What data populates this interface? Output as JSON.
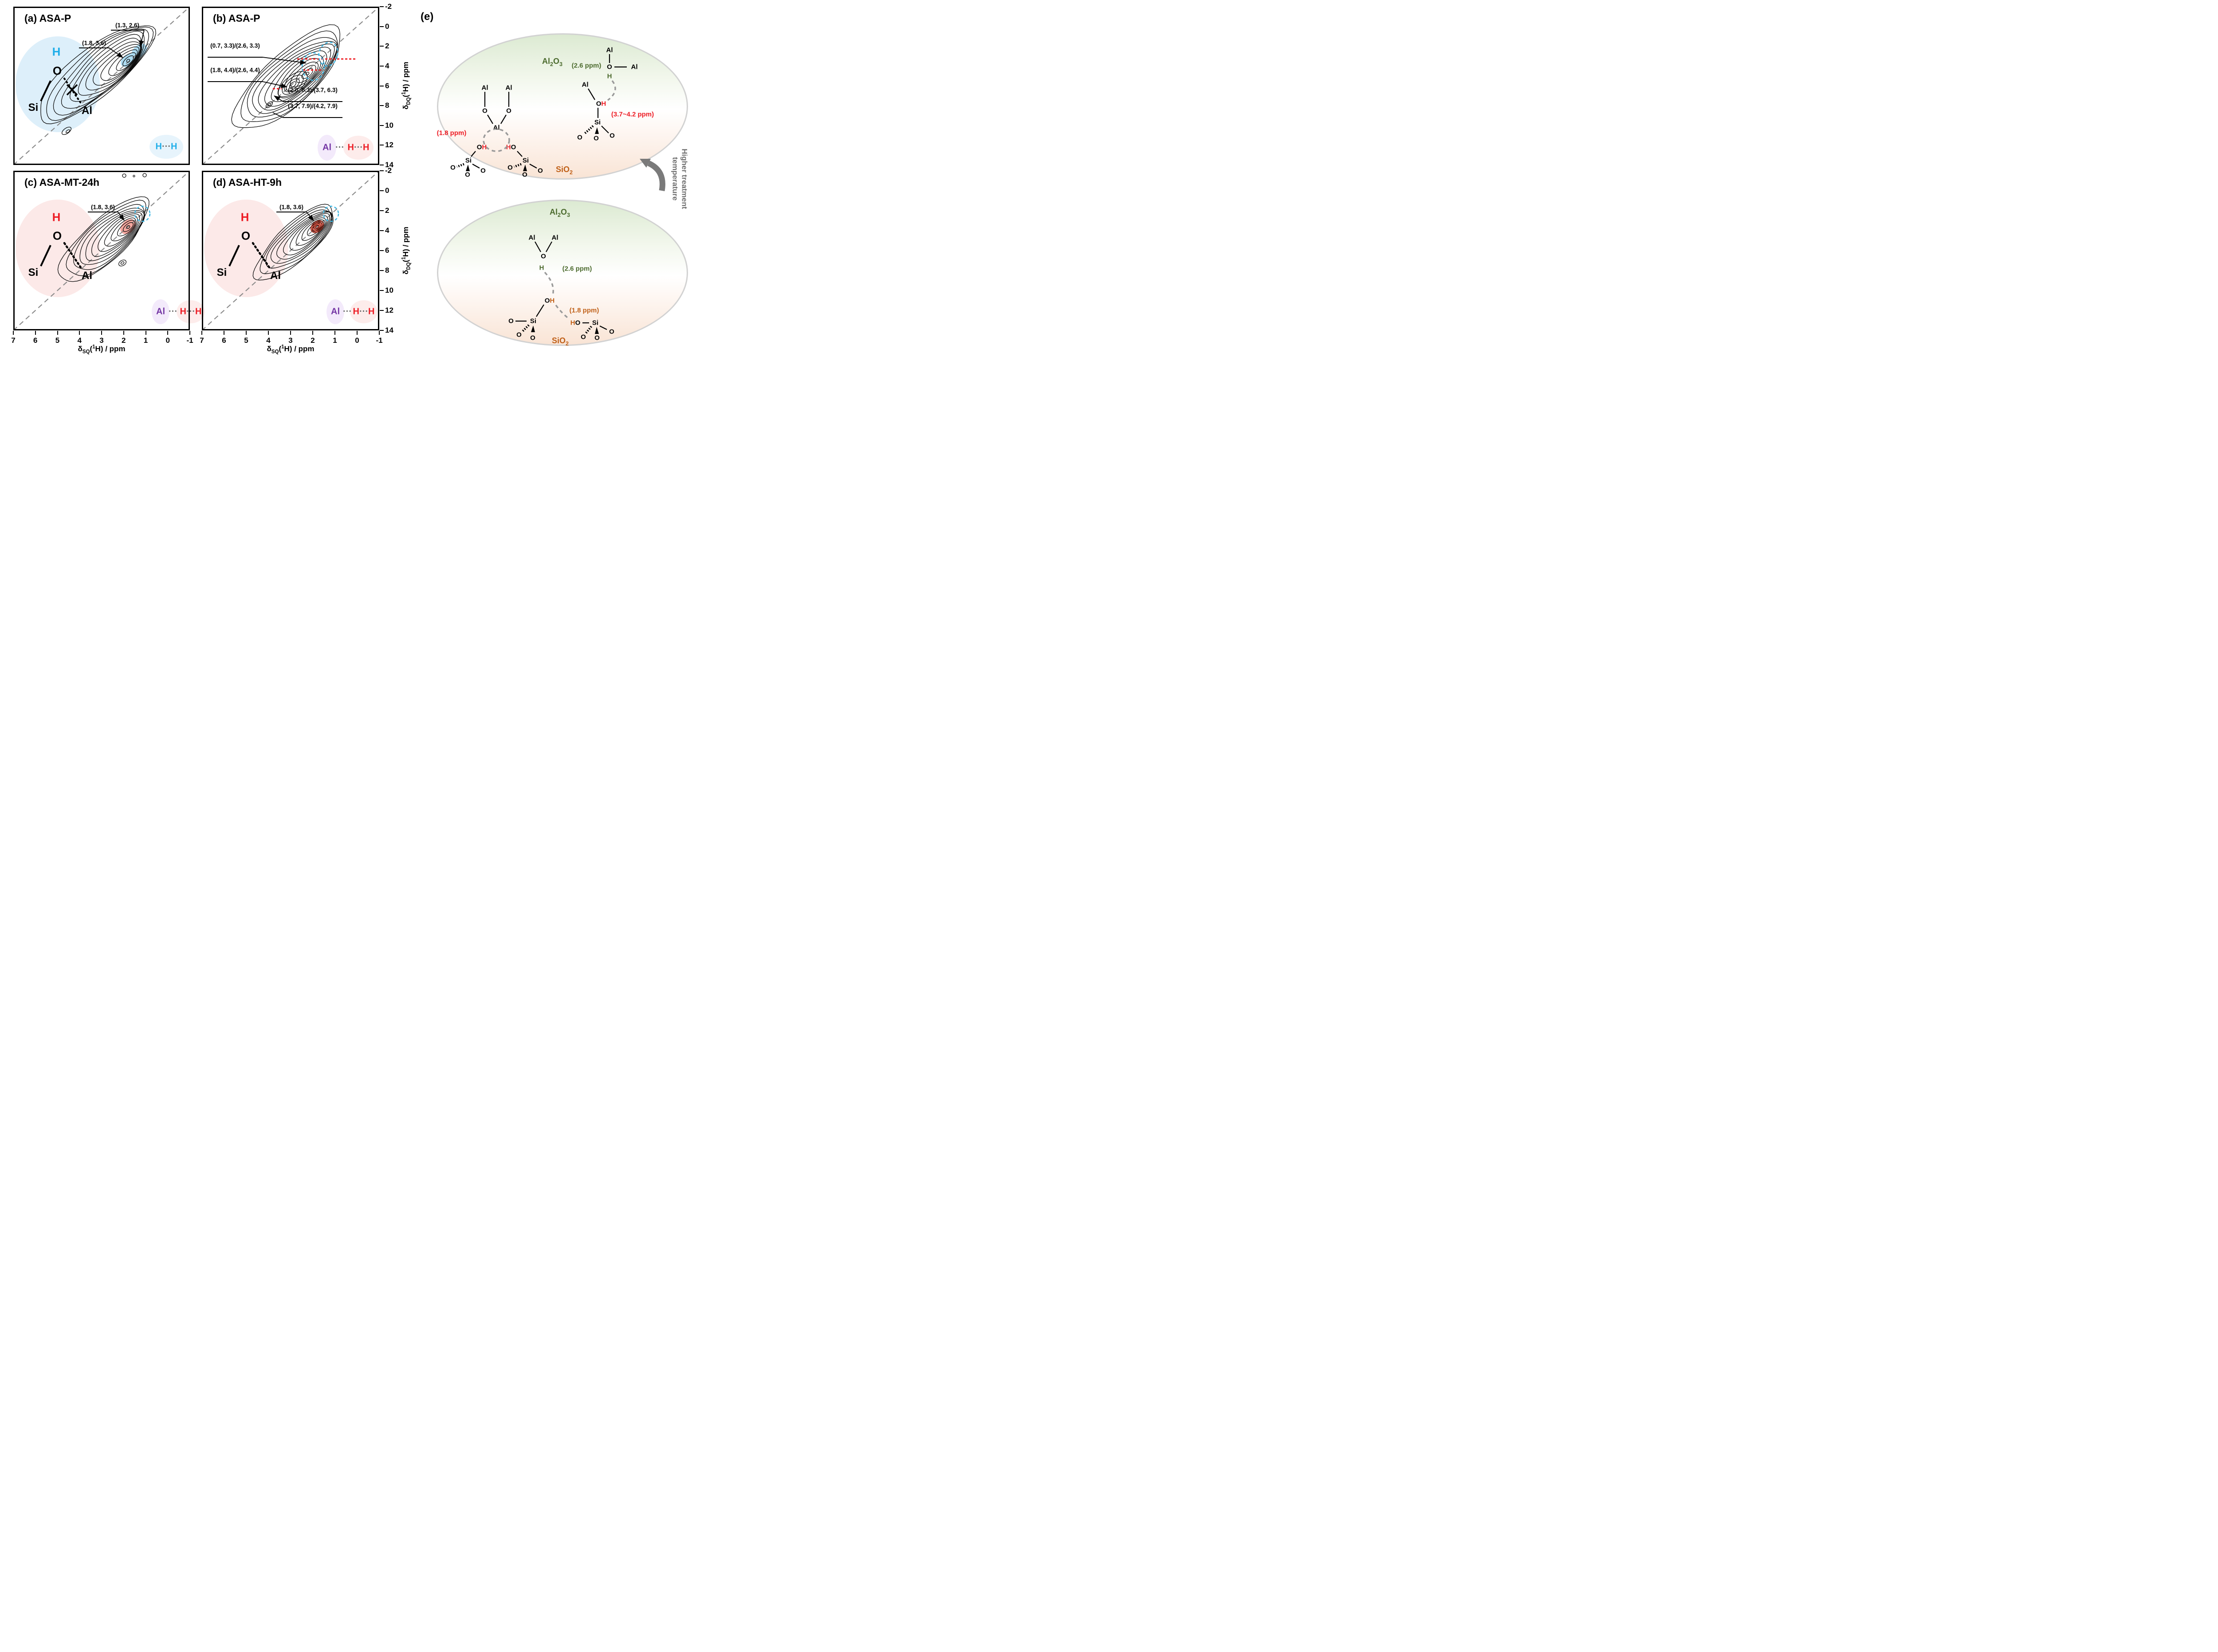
{
  "glyphs": {
    "al": "Al",
    "si": "Si",
    "o": "O",
    "h": "H",
    "dots": "···"
  },
  "panel_a": {
    "title": "(a) ASA-P",
    "ann1": "(1.3, 2.6)",
    "ann2": "(1.8, 3.6)"
  },
  "panel_b": {
    "title": "(b) ASA-P",
    "ann1": "(0.7, 3.3)/(2.6, 3.3)",
    "ann2": "(1.8, 4.4)/(2.6, 4.4)",
    "ann3": "(2.6, 6.3)/(3.7, 6.3)",
    "ann4": "(3.7, 7.9)/(4.2, 7.9)"
  },
  "panel_c": {
    "title": "(c) ASA-MT-24h",
    "ann1": "(1.8, 3.6)"
  },
  "panel_d": {
    "title": "(d) ASA-HT-9h",
    "ann1": "(1.8, 3.6)"
  },
  "axes": {
    "x_ticks": [
      "7",
      "6",
      "5",
      "4",
      "3",
      "2",
      "1",
      "0",
      "-1"
    ],
    "y_ticks": [
      "-2",
      "0",
      "2",
      "4",
      "6",
      "8",
      "10",
      "12",
      "14"
    ],
    "x_label": {
      "p1": "δ",
      "p2": "SQ",
      "p3": "(",
      "p4": "1",
      "p5": "H) / ppm"
    },
    "y_label": {
      "p1": "δ",
      "p2": "DQ",
      "p3": "(",
      "p4": "1",
      "p5": "H) / ppm"
    }
  },
  "panel_e": {
    "label": "(e)",
    "al2o3": {
      "m1": "Al",
      "s1": "2",
      "m2": "O",
      "s2": "3"
    },
    "sio2": {
      "m1": "SiO",
      "s1": "2"
    },
    "ppm_18_red": "(1.8 ppm)",
    "ppm_26_green": "(2.6 ppm)",
    "ppm_37_42_red": "(3.7~4.2 ppm)",
    "ppm_26_green_bottom": "(2.6 ppm)",
    "ppm_18_orange": "(1.8 ppm)",
    "rot1": "Higher treatment",
    "rot2": "temperature"
  },
  "colors": {
    "cyan_h": "#1faee9",
    "red_h": "#ed1c24",
    "purple_al": "#7436a4",
    "green": "#4c6b2e",
    "orange": "#c06018",
    "blue_fill": "#aedcf2",
    "pink_fill": "#f5a79f",
    "red_fill": "#e97f72",
    "cyan_dash": "#3db7e4",
    "red_dash": "#ef1f24",
    "gray_dash": "#9a9a9a",
    "arrow_gray": "#7a7a7a"
  },
  "chart_data": [
    {
      "type": "contour",
      "panel": "a",
      "title": "(a) ASA-P",
      "xlabel": "δSQ(1H) / ppm",
      "ylabel": "δDQ(1H) / ppm",
      "xlim": [
        7,
        -1
      ],
      "ylim": [
        -2,
        14
      ],
      "x_ticks": [
        7,
        6,
        5,
        4,
        3,
        2,
        1,
        0,
        -1
      ],
      "y_ticks": [
        -2,
        0,
        2,
        4,
        6,
        8,
        10,
        12,
        14
      ],
      "diagonal": "DQ = 2 x SQ",
      "labeled_cross_peaks": [
        {
          "sq": 1.3,
          "dq": 2.6
        },
        {
          "sq": 1.8,
          "dq": 3.6
        }
      ],
      "inset": "Si-O(H) x Al (H cyan, non-interacting)",
      "badge": "H···H"
    },
    {
      "type": "contour",
      "panel": "b",
      "title": "(b) ASA-P",
      "xlabel": "δSQ(1H) / ppm",
      "ylabel": "δDQ(1H) / ppm",
      "xlim": [
        7,
        -1
      ],
      "ylim": [
        -2,
        14
      ],
      "x_ticks": [
        7,
        6,
        5,
        4,
        3,
        2,
        1,
        0,
        -1
      ],
      "y_ticks": [
        -2,
        0,
        2,
        4,
        6,
        8,
        10,
        12,
        14
      ],
      "diagonal": "DQ = 2 x SQ",
      "labeled_cross_peaks": [
        {
          "sq": 0.7,
          "dq": 3.3
        },
        {
          "sq": 2.6,
          "dq": 3.3
        },
        {
          "sq": 1.8,
          "dq": 4.4
        },
        {
          "sq": 2.6,
          "dq": 4.4
        },
        {
          "sq": 2.6,
          "dq": 6.3
        },
        {
          "sq": 3.7,
          "dq": 6.3
        },
        {
          "sq": 3.7,
          "dq": 7.9
        },
        {
          "sq": 4.2,
          "dq": 7.9
        }
      ],
      "badge": "Al ··· H···H"
    },
    {
      "type": "contour",
      "panel": "c",
      "title": "(c) ASA-MT-24h",
      "xlabel": "δSQ(1H) / ppm",
      "ylabel": "δDQ(1H) / ppm",
      "xlim": [
        7,
        -1
      ],
      "ylim": [
        -2,
        14
      ],
      "x_ticks": [
        7,
        6,
        5,
        4,
        3,
        2,
        1,
        0,
        -1
      ],
      "y_ticks": [
        -2,
        0,
        2,
        4,
        6,
        8,
        10,
        12,
        14
      ],
      "diagonal": "DQ = 2 x SQ",
      "labeled_cross_peaks": [
        {
          "sq": 1.8,
          "dq": 3.6
        }
      ],
      "inset": "Si-O(H)···Al (H red)",
      "badge": "Al ··· H···H"
    },
    {
      "type": "contour",
      "panel": "d",
      "title": "(d) ASA-HT-9h",
      "xlabel": "δSQ(1H) / ppm",
      "ylabel": "δDQ(1H) / ppm",
      "xlim": [
        7,
        -1
      ],
      "ylim": [
        -2,
        14
      ],
      "x_ticks": [
        7,
        6,
        5,
        4,
        3,
        2,
        1,
        0,
        -1
      ],
      "y_ticks": [
        -2,
        0,
        2,
        4,
        6,
        8,
        10,
        12,
        14
      ],
      "diagonal": "DQ = 2 x SQ",
      "labeled_cross_peaks": [
        {
          "sq": 1.8,
          "dq": 3.6
        }
      ],
      "inset": "Si-O(H)···Al (H red)",
      "badge": "Al ··· H···H"
    }
  ]
}
